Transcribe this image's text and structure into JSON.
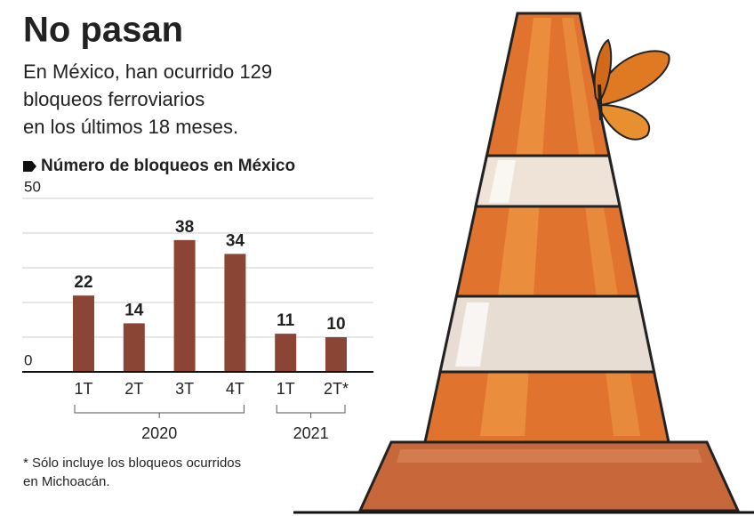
{
  "chart_data": {
    "type": "bar",
    "title": "No pasan",
    "subtitle": [
      "En México, han ocurrido 129",
      "bloqueos ferroviarios",
      "en los últimos 18 meses."
    ],
    "chart_label": "Número de bloqueos en México",
    "categories": [
      "1T",
      "2T",
      "3T",
      "4T",
      "1T",
      "2T*"
    ],
    "x_groups": [
      "2020",
      "2020",
      "2020",
      "2020",
      "2021",
      "2021"
    ],
    "values": [
      22,
      14,
      38,
      34,
      11,
      10
    ],
    "color": "#8b4535",
    "ylim": [
      0,
      50
    ],
    "yticks": [
      0,
      50
    ],
    "gridlines": [
      10,
      20,
      30,
      40,
      50
    ],
    "grid": true,
    "footnote": [
      "* Sólo incluye los bloqueos ocurridos",
      "en Michoacán."
    ]
  }
}
